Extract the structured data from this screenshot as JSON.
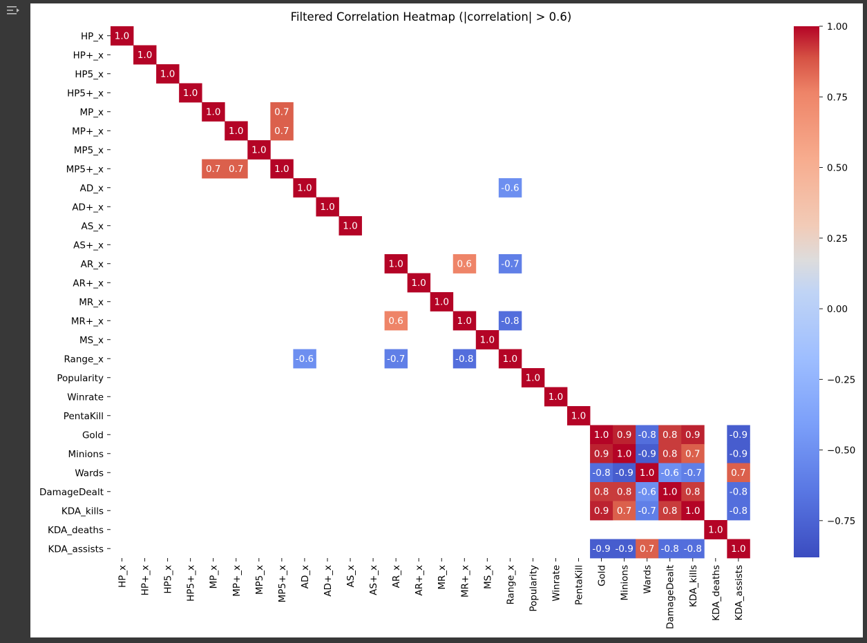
{
  "toolbar": {
    "icon": "output-collapse-icon"
  },
  "chart_data": {
    "type": "heatmap",
    "title": "Filtered Correlation Heatmap (|correlation| > 0.6)",
    "labels": [
      "HP_x",
      "HP+_x",
      "HP5_x",
      "HP5+_x",
      "MP_x",
      "MP+_x",
      "MP5_x",
      "MP5+_x",
      "AD_x",
      "AD+_x",
      "AS_x",
      "AS+_x",
      "AR_x",
      "AR+_x",
      "MR_x",
      "MR+_x",
      "MS_x",
      "Range_x",
      "Popularity",
      "Winrate",
      "PentaKill",
      "Gold",
      "Minions",
      "Wards",
      "DamageDealt",
      "KDA_kills",
      "KDA_deaths",
      "KDA_assists"
    ],
    "cells": [
      [
        0,
        0,
        1.0
      ],
      [
        1,
        1,
        1.0
      ],
      [
        2,
        2,
        1.0
      ],
      [
        3,
        3,
        1.0
      ],
      [
        4,
        4,
        1.0
      ],
      [
        4,
        7,
        0.7
      ],
      [
        5,
        5,
        1.0
      ],
      [
        5,
        7,
        0.7
      ],
      [
        6,
        6,
        1.0
      ],
      [
        7,
        4,
        0.7
      ],
      [
        7,
        5,
        0.7
      ],
      [
        7,
        7,
        1.0
      ],
      [
        8,
        8,
        1.0
      ],
      [
        8,
        17,
        -0.6
      ],
      [
        9,
        9,
        1.0
      ],
      [
        10,
        10,
        1.0
      ],
      [
        12,
        12,
        1.0
      ],
      [
        12,
        15,
        0.6
      ],
      [
        12,
        17,
        -0.7
      ],
      [
        13,
        13,
        1.0
      ],
      [
        14,
        14,
        1.0
      ],
      [
        15,
        12,
        0.6
      ],
      [
        15,
        15,
        1.0
      ],
      [
        15,
        17,
        -0.8
      ],
      [
        16,
        16,
        1.0
      ],
      [
        17,
        8,
        -0.6
      ],
      [
        17,
        12,
        -0.7
      ],
      [
        17,
        15,
        -0.8
      ],
      [
        17,
        17,
        1.0
      ],
      [
        18,
        18,
        1.0
      ],
      [
        19,
        19,
        1.0
      ],
      [
        20,
        20,
        1.0
      ],
      [
        21,
        21,
        1.0
      ],
      [
        21,
        22,
        0.9
      ],
      [
        21,
        23,
        -0.8
      ],
      [
        21,
        24,
        0.8
      ],
      [
        21,
        25,
        0.9
      ],
      [
        21,
        27,
        -0.9
      ],
      [
        22,
        21,
        0.9
      ],
      [
        22,
        22,
        1.0
      ],
      [
        22,
        23,
        -0.9
      ],
      [
        22,
        24,
        0.8
      ],
      [
        22,
        25,
        0.7
      ],
      [
        22,
        27,
        -0.9
      ],
      [
        23,
        21,
        -0.8
      ],
      [
        23,
        22,
        -0.9
      ],
      [
        23,
        23,
        1.0
      ],
      [
        23,
        24,
        -0.6
      ],
      [
        23,
        25,
        -0.7
      ],
      [
        23,
        27,
        0.7
      ],
      [
        24,
        21,
        0.8
      ],
      [
        24,
        22,
        0.8
      ],
      [
        24,
        23,
        -0.6
      ],
      [
        24,
        24,
        1.0
      ],
      [
        24,
        25,
        0.8
      ],
      [
        24,
        27,
        -0.8
      ],
      [
        25,
        21,
        0.9
      ],
      [
        25,
        22,
        0.7
      ],
      [
        25,
        23,
        -0.7
      ],
      [
        25,
        24,
        0.8
      ],
      [
        25,
        25,
        1.0
      ],
      [
        25,
        27,
        -0.8
      ],
      [
        26,
        26,
        1.0
      ],
      [
        27,
        21,
        -0.9
      ],
      [
        27,
        22,
        -0.9
      ],
      [
        27,
        23,
        0.7
      ],
      [
        27,
        24,
        -0.8
      ],
      [
        27,
        25,
        -0.8
      ],
      [
        27,
        27,
        1.0
      ]
    ],
    "colorbar": {
      "colormap": "coolwarm",
      "range": [
        -0.88,
        1.0
      ],
      "ticks": [
        1.0,
        0.75,
        0.5,
        0.25,
        0.0,
        -0.25,
        -0.5,
        -0.75
      ],
      "tick_labels": [
        "1.00",
        "0.75",
        "0.50",
        "0.25",
        "0.00",
        "−0.25",
        "−0.50",
        "−0.75"
      ]
    }
  }
}
